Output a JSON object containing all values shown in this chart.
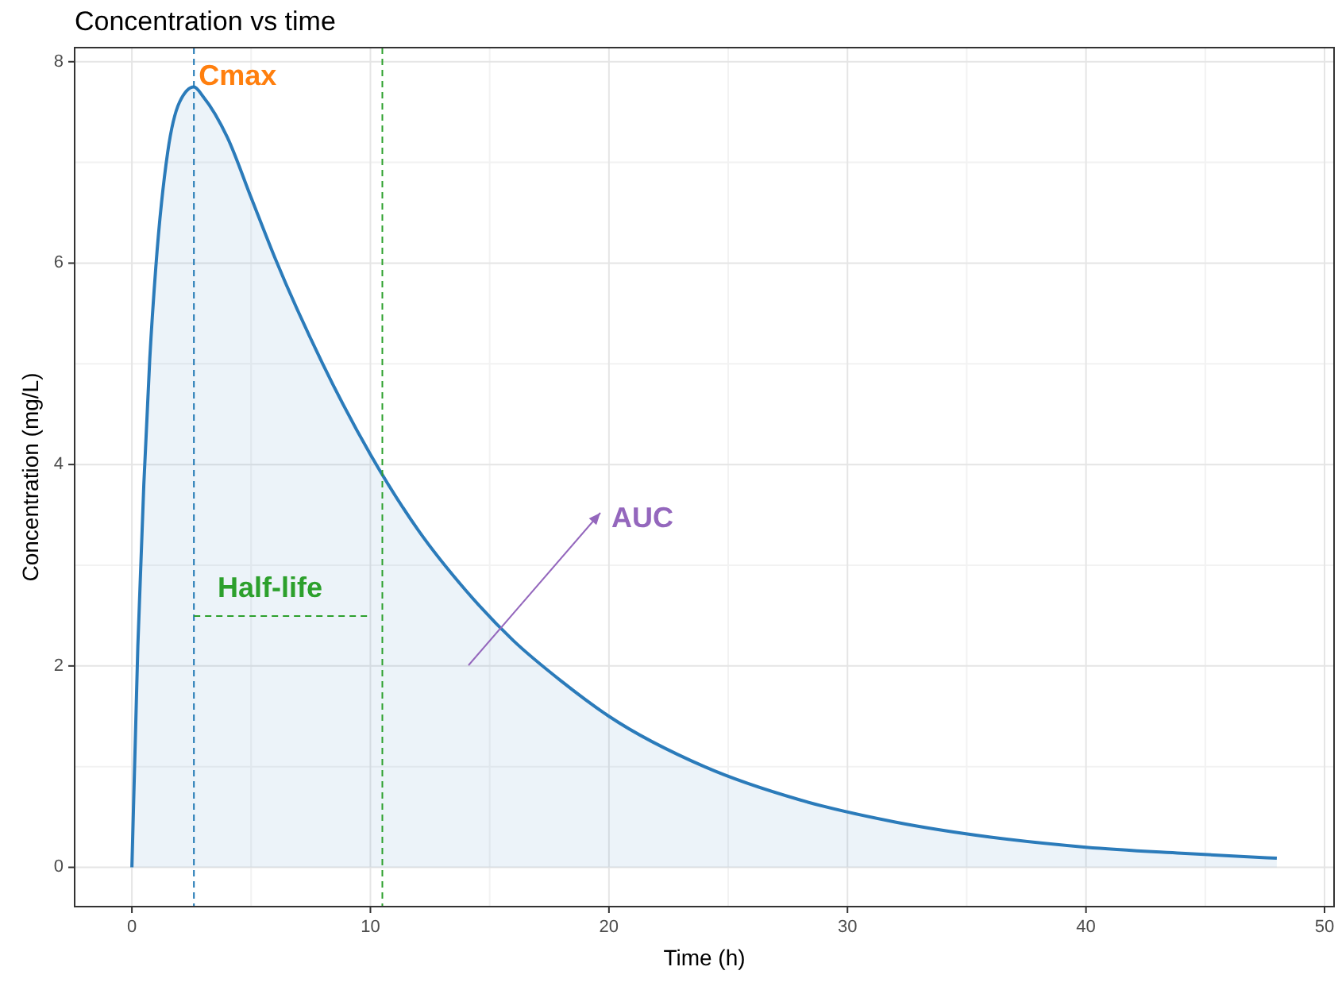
{
  "chart_data": {
    "type": "area",
    "title": "Concentration vs time",
    "xlabel": "Time (h)",
    "ylabel": "Concentration (mg/L)",
    "x": [
      0,
      0.25,
      0.5,
      0.75,
      1,
      1.5,
      2,
      2.6,
      3,
      4,
      5,
      6,
      8,
      10,
      12,
      14,
      16,
      18,
      20,
      24,
      28,
      32,
      36,
      40,
      44,
      48
    ],
    "series": [
      {
        "color": "#2b7bba",
        "values": [
          0,
          2.2,
          3.8,
          5.05,
          5.95,
          7.1,
          7.6,
          7.75,
          7.65,
          7.25,
          6.65,
          6.05,
          5,
          4.1,
          3.35,
          2.75,
          2.25,
          1.85,
          1.5,
          1,
          0.67,
          0.45,
          0.3,
          0.2,
          0.14,
          0.09
        ]
      }
    ],
    "xlim": [
      -2.4,
      50.4
    ],
    "ylim": [
      -0.39,
      8.14
    ],
    "xticks": [
      0,
      10,
      20,
      30,
      40,
      50
    ],
    "yticks": [
      0,
      2,
      4,
      6,
      8
    ],
    "grid": true,
    "ref_lines": [
      {
        "axis": "x",
        "value": 2.6,
        "color": "#1f77b4",
        "line_style": "dashed"
      },
      {
        "axis": "x",
        "value": 10.5,
        "color": "#2ca02c",
        "line_style": "dashed"
      }
    ],
    "annotations": [
      {
        "text": "Cmax",
        "x": 2.6,
        "y": 7.75
      },
      "Half-life",
      "AUC"
    ]
  }
}
